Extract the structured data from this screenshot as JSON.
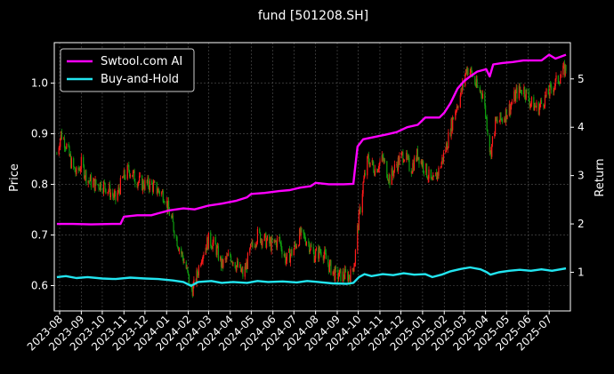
{
  "chart_data": {
    "type": "line",
    "title": "fund [501208.SH]",
    "ylabel_left": "Price",
    "ylabel_right": "Return",
    "ylim_left": [
      0.55,
      1.08
    ],
    "ylim_right": [
      0.2,
      5.75
    ],
    "yticks_left": [
      "0.6",
      "0.7",
      "0.8",
      "0.9",
      "1.0"
    ],
    "yticks_left_values": [
      0.6,
      0.7,
      0.8,
      0.9,
      1.0
    ],
    "yticks_right": [
      "1",
      "2",
      "3",
      "4",
      "5"
    ],
    "yticks_right_values": [
      1,
      2,
      3,
      4,
      5
    ],
    "x_start": "2023-08",
    "x_end": "2025-07-25",
    "xticks": [
      "2023-08",
      "2023-09",
      "2023-10",
      "2023-11",
      "2023-12",
      "2024-01",
      "2024-02",
      "2024-03",
      "2024-04",
      "2024-05",
      "2024-06",
      "2024-07",
      "2024-08",
      "2024-09",
      "2024-10",
      "2024-11",
      "2024-12",
      "2025-01",
      "2025-02",
      "2025-03",
      "2025-04",
      "2025-05",
      "2025-06",
      "2025-07"
    ],
    "grid": true,
    "legend_position": "top-left",
    "colors": {
      "background": "#000000",
      "ai_line": "#ff00ff",
      "hold_line": "#22e5f0",
      "candle_up": "#ff1a1a",
      "candle_down": "#0f9d0f",
      "grid": "#555555"
    },
    "series": [
      {
        "name": "Swtool.com AI",
        "axis": "right",
        "points": [
          [
            "2023-07-28",
            2.0
          ],
          [
            "2023-08-20",
            2.0
          ],
          [
            "2023-09-15",
            1.99
          ],
          [
            "2023-10-15",
            2.0
          ],
          [
            "2023-10-27",
            2.0
          ],
          [
            "2023-11-01",
            2.15
          ],
          [
            "2023-11-20",
            2.18
          ],
          [
            "2023-12-10",
            2.18
          ],
          [
            "2023-12-20",
            2.22
          ],
          [
            "2024-01-05",
            2.28
          ],
          [
            "2024-01-25",
            2.32
          ],
          [
            "2024-02-10",
            2.3
          ],
          [
            "2024-03-01",
            2.38
          ],
          [
            "2024-03-20",
            2.42
          ],
          [
            "2024-04-10",
            2.48
          ],
          [
            "2024-04-25",
            2.55
          ],
          [
            "2024-05-01",
            2.62
          ],
          [
            "2024-05-20",
            2.64
          ],
          [
            "2024-06-10",
            2.68
          ],
          [
            "2024-06-25",
            2.7
          ],
          [
            "2024-07-10",
            2.75
          ],
          [
            "2024-07-25",
            2.78
          ],
          [
            "2024-08-01",
            2.85
          ],
          [
            "2024-08-20",
            2.82
          ],
          [
            "2024-09-10",
            2.82
          ],
          [
            "2024-09-24",
            2.83
          ],
          [
            "2024-09-26",
            3.1
          ],
          [
            "2024-09-30",
            3.6
          ],
          [
            "2024-10-08",
            3.75
          ],
          [
            "2024-10-25",
            3.8
          ],
          [
            "2024-11-10",
            3.85
          ],
          [
            "2024-11-25",
            3.9
          ],
          [
            "2024-12-10",
            4.0
          ],
          [
            "2024-12-25",
            4.05
          ],
          [
            "2025-01-05",
            4.2
          ],
          [
            "2025-01-15",
            4.2
          ],
          [
            "2025-01-25",
            4.2
          ],
          [
            "2025-02-01",
            4.3
          ],
          [
            "2025-02-10",
            4.5
          ],
          [
            "2025-02-20",
            4.8
          ],
          [
            "2025-03-01",
            4.95
          ],
          [
            "2025-03-10",
            5.05
          ],
          [
            "2025-03-20",
            5.15
          ],
          [
            "2025-04-02",
            5.2
          ],
          [
            "2025-04-07",
            5.05
          ],
          [
            "2025-04-12",
            5.3
          ],
          [
            "2025-04-25",
            5.33
          ],
          [
            "2025-05-10",
            5.35
          ],
          [
            "2025-05-25",
            5.38
          ],
          [
            "2025-06-20",
            5.38
          ],
          [
            "2025-07-01",
            5.5
          ],
          [
            "2025-07-10",
            5.42
          ],
          [
            "2025-07-25",
            5.5
          ]
        ]
      },
      {
        "name": "Buy-and-Hold",
        "axis": "right",
        "points": [
          [
            "2023-07-28",
            0.9
          ],
          [
            "2023-08-10",
            0.92
          ],
          [
            "2023-08-25",
            0.88
          ],
          [
            "2023-09-10",
            0.9
          ],
          [
            "2023-10-01",
            0.87
          ],
          [
            "2023-10-20",
            0.86
          ],
          [
            "2023-11-10",
            0.89
          ],
          [
            "2023-12-01",
            0.87
          ],
          [
            "2023-12-20",
            0.86
          ],
          [
            "2024-01-10",
            0.83
          ],
          [
            "2024-01-25",
            0.8
          ],
          [
            "2024-02-05",
            0.72
          ],
          [
            "2024-02-15",
            0.8
          ],
          [
            "2024-03-05",
            0.82
          ],
          [
            "2024-03-20",
            0.78
          ],
          [
            "2024-04-05",
            0.8
          ],
          [
            "2024-04-25",
            0.78
          ],
          [
            "2024-05-10",
            0.82
          ],
          [
            "2024-05-25",
            0.8
          ],
          [
            "2024-06-15",
            0.81
          ],
          [
            "2024-07-05",
            0.79
          ],
          [
            "2024-07-20",
            0.82
          ],
          [
            "2024-08-05",
            0.8
          ],
          [
            "2024-08-25",
            0.77
          ],
          [
            "2024-09-15",
            0.76
          ],
          [
            "2024-09-24",
            0.78
          ],
          [
            "2024-10-02",
            0.9
          ],
          [
            "2024-10-10",
            0.96
          ],
          [
            "2024-10-20",
            0.92
          ],
          [
            "2024-11-05",
            0.96
          ],
          [
            "2024-11-20",
            0.94
          ],
          [
            "2024-12-05",
            0.98
          ],
          [
            "2024-12-20",
            0.95
          ],
          [
            "2025-01-05",
            0.96
          ],
          [
            "2025-01-15",
            0.9
          ],
          [
            "2025-01-28",
            0.95
          ],
          [
            "2025-02-10",
            1.02
          ],
          [
            "2025-02-25",
            1.07
          ],
          [
            "2025-03-10",
            1.1
          ],
          [
            "2025-03-25",
            1.06
          ],
          [
            "2025-04-03",
            1.0
          ],
          [
            "2025-04-08",
            0.95
          ],
          [
            "2025-04-20",
            1.0
          ],
          [
            "2025-05-05",
            1.03
          ],
          [
            "2025-05-20",
            1.05
          ],
          [
            "2025-06-05",
            1.03
          ],
          [
            "2025-06-20",
            1.06
          ],
          [
            "2025-07-05",
            1.03
          ],
          [
            "2025-07-25",
            1.08
          ]
        ]
      },
      {
        "name": "Price",
        "axis": "left",
        "render": "candlestick",
        "points": [
          [
            "2023-07-28",
            0.86
          ],
          [
            "2023-08-03",
            0.9
          ],
          [
            "2023-08-10",
            0.88
          ],
          [
            "2023-08-18",
            0.84
          ],
          [
            "2023-08-25",
            0.82
          ],
          [
            "2023-09-01",
            0.84
          ],
          [
            "2023-09-10",
            0.81
          ],
          [
            "2023-09-20",
            0.8
          ],
          [
            "2023-10-01",
            0.8
          ],
          [
            "2023-10-10",
            0.79
          ],
          [
            "2023-10-20",
            0.77
          ],
          [
            "2023-10-30",
            0.81
          ],
          [
            "2023-11-08",
            0.83
          ],
          [
            "2023-11-18",
            0.81
          ],
          [
            "2023-11-28",
            0.8
          ],
          [
            "2023-12-08",
            0.8
          ],
          [
            "2023-12-18",
            0.79
          ],
          [
            "2023-12-28",
            0.78
          ],
          [
            "2024-01-08",
            0.73
          ],
          [
            "2024-01-18",
            0.68
          ],
          [
            "2024-01-28",
            0.64
          ],
          [
            "2024-02-05",
            0.59
          ],
          [
            "2024-02-10",
            0.6
          ],
          [
            "2024-02-20",
            0.66
          ],
          [
            "2024-03-01",
            0.69
          ],
          [
            "2024-03-10",
            0.68
          ],
          [
            "2024-03-20",
            0.64
          ],
          [
            "2024-04-01",
            0.66
          ],
          [
            "2024-04-10",
            0.64
          ],
          [
            "2024-04-20",
            0.62
          ],
          [
            "2024-04-30",
            0.67
          ],
          [
            "2024-05-10",
            0.7
          ],
          [
            "2024-05-20",
            0.69
          ],
          [
            "2024-05-30",
            0.68
          ],
          [
            "2024-06-10",
            0.69
          ],
          [
            "2024-06-20",
            0.65
          ],
          [
            "2024-06-30",
            0.67
          ],
          [
            "2024-07-10",
            0.7
          ],
          [
            "2024-07-20",
            0.69
          ],
          [
            "2024-07-30",
            0.66
          ],
          [
            "2024-08-10",
            0.67
          ],
          [
            "2024-08-20",
            0.64
          ],
          [
            "2024-08-30",
            0.62
          ],
          [
            "2024-09-10",
            0.62
          ],
          [
            "2024-09-20",
            0.62
          ],
          [
            "2024-09-26",
            0.65
          ],
          [
            "2024-09-30",
            0.71
          ],
          [
            "2024-10-08",
            0.8
          ],
          [
            "2024-10-15",
            0.85
          ],
          [
            "2024-10-25",
            0.83
          ],
          [
            "2024-11-05",
            0.85
          ],
          [
            "2024-11-15",
            0.81
          ],
          [
            "2024-11-25",
            0.84
          ],
          [
            "2024-12-05",
            0.86
          ],
          [
            "2024-12-15",
            0.83
          ],
          [
            "2024-12-25",
            0.86
          ],
          [
            "2025-01-05",
            0.83
          ],
          [
            "2025-01-15",
            0.8
          ],
          [
            "2025-01-25",
            0.83
          ],
          [
            "2025-02-05",
            0.88
          ],
          [
            "2025-02-15",
            0.94
          ],
          [
            "2025-02-25",
            0.98
          ],
          [
            "2025-03-05",
            1.03
          ],
          [
            "2025-03-12",
            1.02
          ],
          [
            "2025-03-20",
            0.99
          ],
          [
            "2025-03-28",
            0.98
          ],
          [
            "2025-04-03",
            0.92
          ],
          [
            "2025-04-08",
            0.86
          ],
          [
            "2025-04-15",
            0.92
          ],
          [
            "2025-04-25",
            0.93
          ],
          [
            "2025-05-05",
            0.95
          ],
          [
            "2025-05-15",
            0.98
          ],
          [
            "2025-05-25",
            0.99
          ],
          [
            "2025-06-05",
            0.96
          ],
          [
            "2025-06-15",
            0.95
          ],
          [
            "2025-06-25",
            0.97
          ],
          [
            "2025-07-05",
            0.99
          ],
          [
            "2025-07-15",
            1.01
          ],
          [
            "2025-07-25",
            1.03
          ]
        ]
      }
    ]
  }
}
